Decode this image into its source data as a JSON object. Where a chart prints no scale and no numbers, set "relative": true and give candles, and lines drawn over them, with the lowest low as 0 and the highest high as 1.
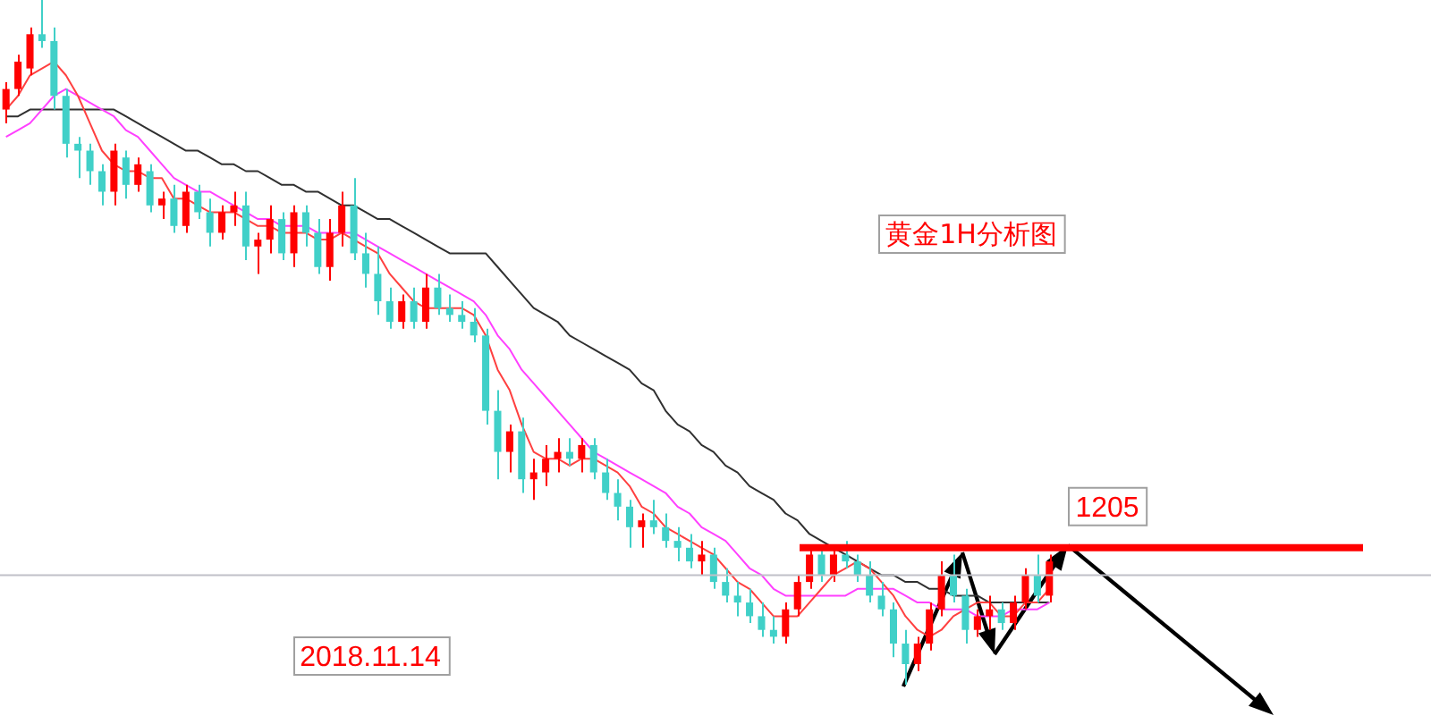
{
  "chart_data": {
    "type": "candlestick",
    "relative": true,
    "legend": false,
    "categories": [
      null,
      null,
      null,
      null,
      null,
      null,
      null,
      null,
      null,
      null,
      null,
      null,
      null,
      null,
      null,
      null,
      null,
      null,
      null,
      null,
      null,
      null,
      null,
      null,
      null,
      null,
      null,
      null,
      null,
      null,
      null,
      null,
      null,
      null,
      null,
      null,
      null,
      null,
      null,
      null,
      null,
      null,
      null,
      null,
      null,
      null,
      null,
      null,
      null,
      null,
      null,
      null,
      null,
      null,
      null,
      null,
      null,
      null,
      null,
      null,
      null,
      null,
      null,
      null,
      null,
      null,
      null,
      null,
      null,
      null,
      null,
      null,
      null,
      null,
      null,
      null,
      null,
      null,
      null,
      null,
      null,
      null,
      null,
      null,
      null,
      null,
      null,
      null
    ],
    "ohlc": [
      [
        0.84,
        0.88,
        0.82,
        0.87
      ],
      [
        0.87,
        0.92,
        0.86,
        0.91
      ],
      [
        0.9,
        0.96,
        0.89,
        0.95
      ],
      [
        0.95,
        1.0,
        0.93,
        0.94
      ],
      [
        0.94,
        0.96,
        0.84,
        0.86
      ],
      [
        0.86,
        0.87,
        0.77,
        0.79
      ],
      [
        0.79,
        0.8,
        0.74,
        0.78
      ],
      [
        0.78,
        0.79,
        0.73,
        0.75
      ],
      [
        0.75,
        0.76,
        0.7,
        0.72
      ],
      [
        0.72,
        0.79,
        0.7,
        0.78
      ],
      [
        0.77,
        0.78,
        0.71,
        0.73
      ],
      [
        0.73,
        0.77,
        0.72,
        0.76
      ],
      [
        0.75,
        0.76,
        0.69,
        0.7
      ],
      [
        0.7,
        0.72,
        0.68,
        0.71
      ],
      [
        0.71,
        0.73,
        0.66,
        0.67
      ],
      [
        0.67,
        0.73,
        0.66,
        0.72
      ],
      [
        0.72,
        0.73,
        0.68,
        0.69
      ],
      [
        0.69,
        0.71,
        0.64,
        0.66
      ],
      [
        0.66,
        0.7,
        0.65,
        0.69
      ],
      [
        0.69,
        0.72,
        0.67,
        0.7
      ],
      [
        0.7,
        0.72,
        0.62,
        0.64
      ],
      [
        0.64,
        0.66,
        0.6,
        0.65
      ],
      [
        0.65,
        0.7,
        0.63,
        0.68
      ],
      [
        0.68,
        0.69,
        0.62,
        0.63
      ],
      [
        0.63,
        0.7,
        0.61,
        0.69
      ],
      [
        0.69,
        0.7,
        0.64,
        0.66
      ],
      [
        0.66,
        0.68,
        0.6,
        0.61
      ],
      [
        0.61,
        0.68,
        0.59,
        0.66
      ],
      [
        0.66,
        0.72,
        0.64,
        0.7
      ],
      [
        0.7,
        0.74,
        0.62,
        0.63
      ],
      [
        0.63,
        0.66,
        0.58,
        0.6
      ],
      [
        0.6,
        0.64,
        0.54,
        0.56
      ],
      [
        0.56,
        0.58,
        0.52,
        0.53
      ],
      [
        0.53,
        0.57,
        0.52,
        0.56
      ],
      [
        0.56,
        0.58,
        0.52,
        0.53
      ],
      [
        0.53,
        0.6,
        0.52,
        0.58
      ],
      [
        0.58,
        0.6,
        0.54,
        0.55
      ],
      [
        0.55,
        0.57,
        0.53,
        0.54
      ],
      [
        0.54,
        0.56,
        0.52,
        0.53
      ],
      [
        0.53,
        0.55,
        0.5,
        0.51
      ],
      [
        0.51,
        0.52,
        0.38,
        0.4
      ],
      [
        0.4,
        0.43,
        0.3,
        0.34
      ],
      [
        0.34,
        0.38,
        0.31,
        0.37
      ],
      [
        0.37,
        0.39,
        0.28,
        0.3
      ],
      [
        0.3,
        0.33,
        0.27,
        0.31
      ],
      [
        0.31,
        0.35,
        0.29,
        0.33
      ],
      [
        0.33,
        0.36,
        0.31,
        0.34
      ],
      [
        0.34,
        0.36,
        0.32,
        0.33
      ],
      [
        0.33,
        0.36,
        0.31,
        0.35
      ],
      [
        0.35,
        0.36,
        0.3,
        0.31
      ],
      [
        0.31,
        0.33,
        0.27,
        0.28
      ],
      [
        0.28,
        0.3,
        0.24,
        0.26
      ],
      [
        0.26,
        0.27,
        0.2,
        0.23
      ],
      [
        0.23,
        0.25,
        0.2,
        0.24
      ],
      [
        0.24,
        0.27,
        0.22,
        0.23
      ],
      [
        0.23,
        0.25,
        0.2,
        0.21
      ],
      [
        0.21,
        0.23,
        0.18,
        0.2
      ],
      [
        0.2,
        0.22,
        0.17,
        0.18
      ],
      [
        0.18,
        0.21,
        0.16,
        0.19
      ],
      [
        0.19,
        0.2,
        0.14,
        0.15
      ],
      [
        0.15,
        0.17,
        0.12,
        0.13
      ],
      [
        0.13,
        0.15,
        0.1,
        0.12
      ],
      [
        0.12,
        0.14,
        0.09,
        0.1
      ],
      [
        0.1,
        0.12,
        0.07,
        0.08
      ],
      [
        0.08,
        0.1,
        0.06,
        0.07
      ],
      [
        0.07,
        0.12,
        0.06,
        0.11
      ],
      [
        0.11,
        0.16,
        0.1,
        0.15
      ],
      [
        0.15,
        0.2,
        0.14,
        0.19
      ],
      [
        0.19,
        0.2,
        0.15,
        0.16
      ],
      [
        0.16,
        0.2,
        0.15,
        0.19
      ],
      [
        0.19,
        0.21,
        0.17,
        0.18
      ],
      [
        0.18,
        0.19,
        0.15,
        0.16
      ],
      [
        0.16,
        0.18,
        0.12,
        0.13
      ],
      [
        0.13,
        0.15,
        0.1,
        0.11
      ],
      [
        0.11,
        0.12,
        0.04,
        0.06
      ],
      [
        0.06,
        0.08,
        0.0,
        0.03
      ],
      [
        0.03,
        0.07,
        0.02,
        0.06
      ],
      [
        0.06,
        0.12,
        0.05,
        0.11
      ],
      [
        0.11,
        0.18,
        0.1,
        0.16
      ],
      [
        0.16,
        0.19,
        0.12,
        0.13
      ],
      [
        0.13,
        0.14,
        0.06,
        0.08
      ],
      [
        0.08,
        0.11,
        0.07,
        0.1
      ],
      [
        0.1,
        0.13,
        0.08,
        0.11
      ],
      [
        0.11,
        0.12,
        0.08,
        0.09
      ],
      [
        0.09,
        0.13,
        0.08,
        0.12
      ],
      [
        0.12,
        0.17,
        0.11,
        0.16
      ],
      [
        0.16,
        0.19,
        0.12,
        0.13
      ],
      [
        0.13,
        0.19,
        0.12,
        0.18
      ]
    ],
    "colors": [
      "#ff0000",
      "#ff0000",
      "#ff0000",
      "#40d0c8",
      "#40d0c8",
      "#40d0c8",
      "#40d0c8",
      "#40d0c8",
      "#40d0c8",
      "#ff0000",
      "#40d0c8",
      "#ff0000",
      "#40d0c8",
      "#ff0000",
      "#40d0c8",
      "#ff0000",
      "#40d0c8",
      "#40d0c8",
      "#ff0000",
      "#ff0000",
      "#40d0c8",
      "#ff0000",
      "#ff0000",
      "#40d0c8",
      "#ff0000",
      "#40d0c8",
      "#40d0c8",
      "#ff0000",
      "#ff0000",
      "#40d0c8",
      "#40d0c8",
      "#40d0c8",
      "#40d0c8",
      "#ff0000",
      "#40d0c8",
      "#ff0000",
      "#40d0c8",
      "#40d0c8",
      "#40d0c8",
      "#40d0c8",
      "#40d0c8",
      "#40d0c8",
      "#ff0000",
      "#40d0c8",
      "#ff0000",
      "#ff0000",
      "#ff0000",
      "#40d0c8",
      "#ff0000",
      "#40d0c8",
      "#40d0c8",
      "#40d0c8",
      "#40d0c8",
      "#ff0000",
      "#40d0c8",
      "#40d0c8",
      "#40d0c8",
      "#40d0c8",
      "#ff0000",
      "#40d0c8",
      "#40d0c8",
      "#40d0c8",
      "#40d0c8",
      "#40d0c8",
      "#40d0c8",
      "#ff0000",
      "#ff0000",
      "#ff0000",
      "#40d0c8",
      "#ff0000",
      "#40d0c8",
      "#40d0c8",
      "#40d0c8",
      "#40d0c8",
      "#40d0c8",
      "#40d0c8",
      "#ff0000",
      "#ff0000",
      "#ff0000",
      "#40d0c8",
      "#40d0c8",
      "#ff0000",
      "#ff0000",
      "#40d0c8",
      "#ff0000",
      "#ff0000",
      "#40d0c8",
      "#ff0000"
    ],
    "series": [
      {
        "type": "line",
        "color": "#ff4040",
        "values": [
          0.84,
          0.86,
          0.89,
          0.9,
          0.91,
          0.89,
          0.86,
          0.82,
          0.78,
          0.76,
          0.75,
          0.75,
          0.74,
          0.74,
          0.71,
          0.71,
          0.7,
          0.69,
          0.69,
          0.69,
          0.68,
          0.67,
          0.67,
          0.66,
          0.66,
          0.66,
          0.65,
          0.65,
          0.66,
          0.65,
          0.64,
          0.63,
          0.6,
          0.58,
          0.56,
          0.55,
          0.55,
          0.55,
          0.55,
          0.54,
          0.51,
          0.46,
          0.43,
          0.38,
          0.34,
          0.33,
          0.33,
          0.32,
          0.33,
          0.33,
          0.32,
          0.31,
          0.29,
          0.26,
          0.25,
          0.23,
          0.22,
          0.21,
          0.2,
          0.19,
          0.17,
          0.15,
          0.14,
          0.12,
          0.1,
          0.1,
          0.1,
          0.12,
          0.14,
          0.16,
          0.17,
          0.18,
          0.17,
          0.15,
          0.13,
          0.1,
          0.08,
          0.07,
          0.08,
          0.1,
          0.11,
          0.12,
          0.12,
          0.1,
          0.1,
          0.12,
          0.12,
          0.14
        ]
      },
      {
        "type": "line",
        "color": "#ff40ff",
        "values": [
          0.8,
          0.81,
          0.82,
          0.84,
          0.86,
          0.87,
          0.86,
          0.85,
          0.84,
          0.83,
          0.81,
          0.8,
          0.78,
          0.76,
          0.74,
          0.73,
          0.72,
          0.72,
          0.71,
          0.7,
          0.69,
          0.68,
          0.68,
          0.67,
          0.67,
          0.67,
          0.66,
          0.66,
          0.66,
          0.66,
          0.65,
          0.64,
          0.63,
          0.62,
          0.61,
          0.6,
          0.59,
          0.58,
          0.57,
          0.56,
          0.54,
          0.51,
          0.49,
          0.46,
          0.44,
          0.42,
          0.4,
          0.38,
          0.36,
          0.34,
          0.33,
          0.32,
          0.31,
          0.3,
          0.29,
          0.28,
          0.26,
          0.25,
          0.23,
          0.22,
          0.21,
          0.19,
          0.17,
          0.16,
          0.14,
          0.13,
          0.13,
          0.13,
          0.13,
          0.13,
          0.13,
          0.14,
          0.14,
          0.14,
          0.14,
          0.13,
          0.12,
          0.12,
          0.11,
          0.11,
          0.11,
          0.1,
          0.1,
          0.1,
          0.11,
          0.11,
          0.11,
          0.12
        ]
      },
      {
        "type": "line",
        "color": "#303030",
        "values": [
          0.83,
          0.83,
          0.84,
          0.84,
          0.84,
          0.84,
          0.84,
          0.84,
          0.84,
          0.84,
          0.83,
          0.82,
          0.81,
          0.8,
          0.79,
          0.78,
          0.78,
          0.77,
          0.76,
          0.76,
          0.75,
          0.75,
          0.74,
          0.73,
          0.73,
          0.72,
          0.72,
          0.71,
          0.7,
          0.7,
          0.69,
          0.68,
          0.68,
          0.67,
          0.66,
          0.65,
          0.64,
          0.63,
          0.63,
          0.63,
          0.63,
          0.61,
          0.59,
          0.57,
          0.55,
          0.54,
          0.53,
          0.51,
          0.5,
          0.49,
          0.48,
          0.47,
          0.46,
          0.44,
          0.43,
          0.4,
          0.38,
          0.37,
          0.35,
          0.34,
          0.32,
          0.31,
          0.29,
          0.28,
          0.27,
          0.25,
          0.24,
          0.22,
          0.21,
          0.2,
          0.19,
          0.18,
          0.17,
          0.16,
          0.16,
          0.15,
          0.15,
          0.14,
          0.14,
          0.13,
          0.13,
          0.13,
          0.12,
          0.12,
          0.12,
          0.12,
          0.12,
          0.12
        ]
      }
    ],
    "ref_lines": [
      {
        "axis": "y",
        "value": 0.2,
        "color": "#ff0000"
      },
      {
        "axis": "y",
        "value": 0.16,
        "color": "#c0c0c8"
      }
    ],
    "annotations": [
      "黄金1H分析图",
      "2018.11.14",
      {
        "text": "1205",
        "y": 0.2
      }
    ]
  }
}
